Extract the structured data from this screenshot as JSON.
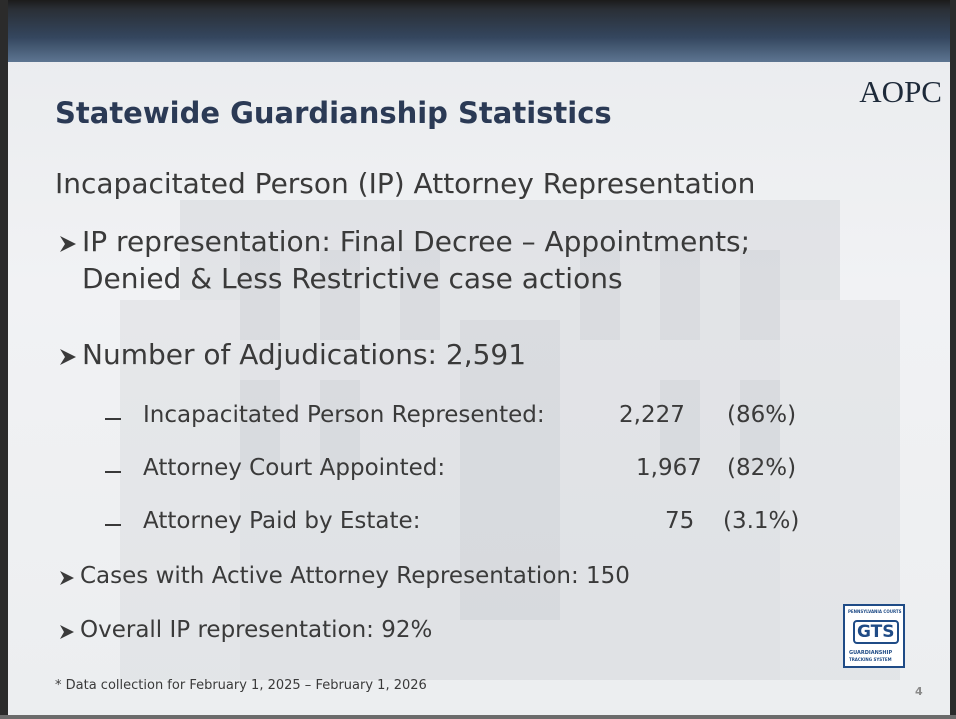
{
  "header": {
    "logo": "AOPC",
    "title": "Statewide Guardianship Statistics"
  },
  "subtitle": "Incapacitated Person (IP) Attorney Representation",
  "bullets": [
    {
      "lines": [
        "IP representation: Final Decree – Appointments;",
        "Denied & Less Restrictive case actions"
      ]
    },
    {
      "text": "Number of Adjudications: 2,591"
    }
  ],
  "sub_items": [
    {
      "label": "Incapacitated Person Represented:",
      "value": "2,227",
      "percent": "(86%)"
    },
    {
      "label": "Attorney Court Appointed:",
      "value": "1,967",
      "percent": "(82%)"
    },
    {
      "label": "Attorney Paid by Estate:",
      "value": "75",
      "percent": "(3.1%)"
    }
  ],
  "more_bullets": [
    "Cases with Active Attorney Representation: 150",
    "Overall IP representation: 92%"
  ],
  "badge": {
    "top": "PENNSYLVANIA COURTS",
    "mark": "GTS",
    "bottom": [
      "GUARDIANSHIP",
      "TRACKING SYSTEM"
    ]
  },
  "footnote": "* Data collection for February 1, 2025 – February 1, 2026",
  "page_number": "4"
}
